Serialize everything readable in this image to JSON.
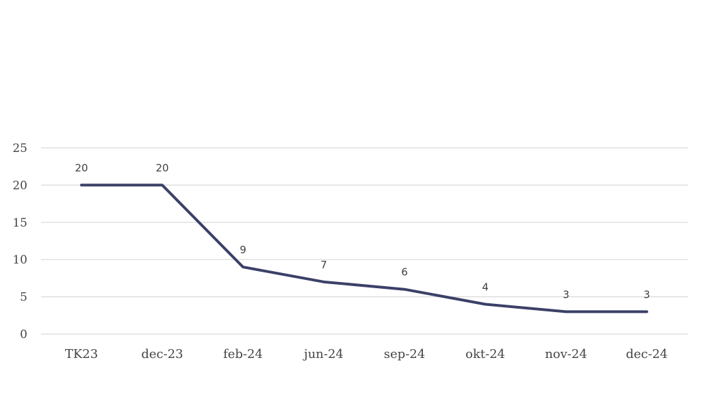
{
  "chart_data": {
    "type": "line",
    "categories": [
      "TK23",
      "dec-23",
      "feb-24",
      "jun-24",
      "sep-24",
      "okt-24",
      "nov-24",
      "dec-24"
    ],
    "series": [
      {
        "values": [
          20,
          20,
          9,
          7,
          6,
          4,
          3,
          3
        ],
        "color": "#3b4068"
      }
    ],
    "y_ticks": [
      "0",
      "5",
      "10",
      "15",
      "20",
      "25"
    ],
    "ylim": [
      0,
      25
    ],
    "data_labels": [
      "20",
      "20",
      "9",
      "7",
      "6",
      "4",
      "3",
      "3"
    ],
    "grid": true,
    "legend": "none"
  }
}
